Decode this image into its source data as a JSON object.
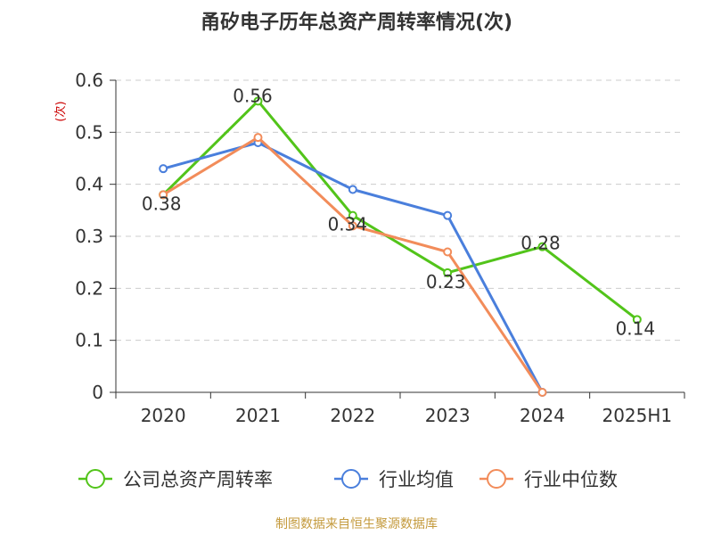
{
  "chart_data": {
    "type": "line",
    "title": "甬矽电子历年总资产周转率情况(次)",
    "ylabel": "(次)",
    "xlabel": "",
    "categories": [
      "2020",
      "2021",
      "2022",
      "2023",
      "2024",
      "2025H1"
    ],
    "ylim": [
      0,
      0.6
    ],
    "yticks": [
      "0",
      "0.1",
      "0.2",
      "0.3",
      "0.4",
      "0.5",
      "0.6"
    ],
    "grid": true,
    "legend_position": "bottom",
    "series": [
      {
        "name": "公司总资产周转率",
        "color": "#52c41a",
        "values": [
          0.38,
          0.56,
          0.34,
          0.23,
          0.28,
          0.14
        ],
        "labels": [
          "0.38",
          "0.56",
          "0.34",
          "0.23",
          "0.28",
          "0.14"
        ]
      },
      {
        "name": "行业均值",
        "color": "#4a7fdc",
        "values": [
          0.43,
          0.48,
          0.39,
          0.34,
          0.0,
          null
        ]
      },
      {
        "name": "行业中位数",
        "color": "#f28c5a",
        "values": [
          0.38,
          0.49,
          0.32,
          0.27,
          0.0,
          null
        ]
      }
    ]
  },
  "source": "制图数据来自恒生聚源数据库"
}
